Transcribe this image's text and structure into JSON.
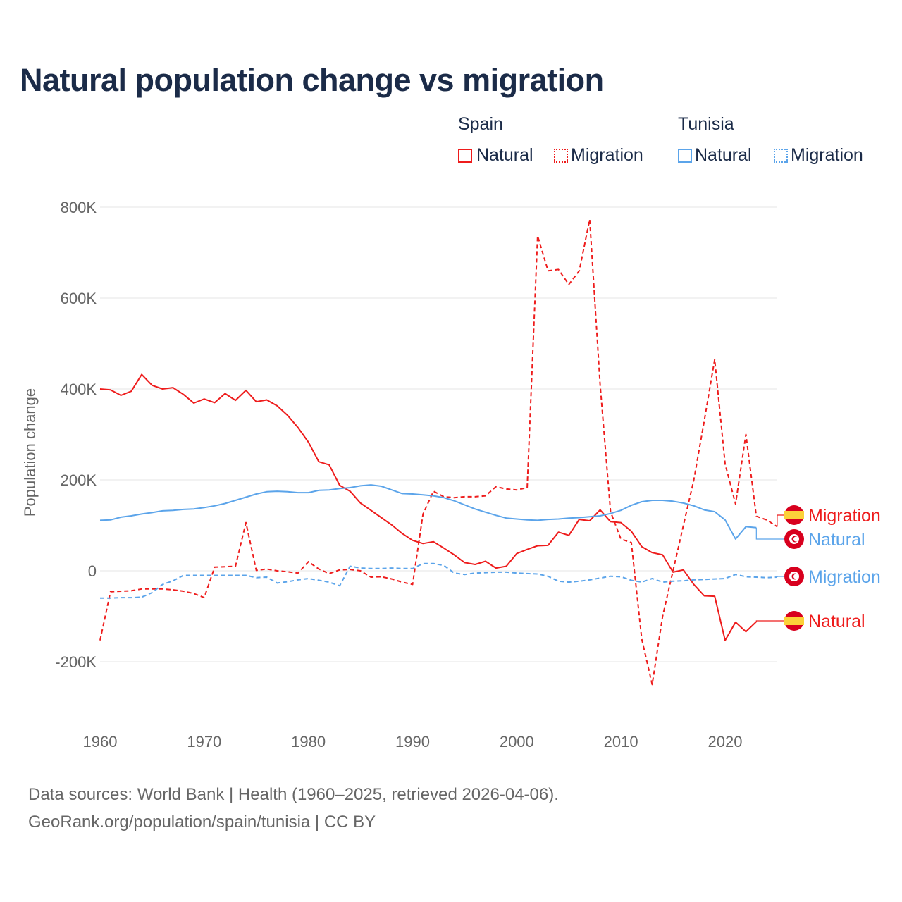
{
  "title": "Natural population change vs migration",
  "legend": {
    "groups": [
      {
        "name": "Spain",
        "items": [
          {
            "label": "Natural",
            "style": "solid"
          },
          {
            "label": "Migration",
            "style": "dotted"
          }
        ],
        "color": "#ee1c1c"
      },
      {
        "name": "Tunisia",
        "items": [
          {
            "label": "Natural",
            "style": "solid"
          },
          {
            "label": "Migration",
            "style": "dotted"
          }
        ],
        "color": "#5ba4ea"
      }
    ]
  },
  "footer": {
    "line1": "Data sources: World Bank | Health (1960–2025, retrieved 2026-04-06).",
    "line2": "GeoRank.org/population/spain/tunisia | CC BY"
  },
  "chart_data": {
    "type": "line",
    "title": "Natural population change vs migration",
    "xlabel": "",
    "ylabel": "Population change",
    "xlim": [
      1960,
      2025
    ],
    "ylim": [
      -300000,
      800000
    ],
    "x_ticks": [
      1960,
      1970,
      1980,
      1990,
      2000,
      2010,
      2020
    ],
    "x_tick_labels": [
      "1960",
      "1970",
      "1980",
      "1990",
      "2000",
      "2010",
      "2020"
    ],
    "y_ticks": [
      -200000,
      0,
      200000,
      400000,
      600000,
      800000
    ],
    "y_tick_labels": [
      "-200K",
      "0",
      "200K",
      "400K",
      "600K",
      "800K"
    ],
    "grid": true,
    "legend_position": "top-right",
    "series": [
      {
        "name": "Spain Natural",
        "country": "Spain",
        "label": "Natural",
        "color": "#ee1c1c",
        "dash": false,
        "x_start": 1960,
        "values": [
          400,
          398,
          386,
          395,
          432,
          408,
          400,
          403,
          388,
          369,
          378,
          370,
          390,
          375,
          397,
          372,
          376,
          363,
          342,
          315,
          283,
          240,
          233,
          188,
          175,
          149,
          133,
          117,
          101,
          82,
          67,
          60,
          64,
          50,
          35,
          18,
          14,
          21,
          6,
          10,
          38,
          47,
          55,
          56,
          85,
          78,
          113,
          110,
          134,
          108,
          106,
          87,
          53,
          40,
          35,
          -3,
          2,
          -30,
          -55,
          -56,
          -153,
          -113,
          -134,
          -112
        ]
      },
      {
        "name": "Spain Migration",
        "country": "Spain",
        "label": "Migration",
        "color": "#ee1c1c",
        "dash": true,
        "x_start": 1960,
        "values": [
          -153,
          -46,
          -45,
          -44,
          -40,
          -40,
          -40,
          -42,
          -45,
          -50,
          -59,
          8,
          9,
          10,
          106,
          1,
          4,
          0,
          -2,
          -5,
          20,
          4,
          -6,
          2,
          3,
          0,
          -14,
          -13,
          -18,
          -25,
          -30,
          125,
          175,
          163,
          161,
          163,
          163,
          165,
          185,
          180,
          178,
          183,
          737,
          660,
          663,
          630,
          660,
          773,
          410,
          130,
          70,
          62,
          -150,
          -250,
          -100,
          0,
          100,
          200,
          330,
          465,
          235,
          147,
          300,
          120,
          112,
          97
        ]
      },
      {
        "name": "Tunisia Natural",
        "country": "Tunisia",
        "label": "Natural",
        "color": "#5ba4ea",
        "dash": false,
        "x_start": 1960,
        "values": [
          111,
          112,
          118,
          121,
          125,
          128,
          132,
          133,
          135,
          136,
          139,
          143,
          148,
          155,
          162,
          169,
          174,
          175,
          174,
          172,
          172,
          177,
          178,
          181,
          183,
          187,
          189,
          186,
          178,
          170,
          169,
          167,
          165,
          161,
          154,
          145,
          136,
          129,
          122,
          116,
          114,
          112,
          111,
          113,
          114,
          116,
          117,
          119,
          121,
          126,
          133,
          144,
          152,
          155,
          155,
          153,
          149,
          143,
          134,
          130,
          112,
          70,
          97,
          95
        ]
      },
      {
        "name": "Tunisia Migration",
        "country": "Tunisia",
        "label": "Migration",
        "color": "#5ba4ea",
        "dash": true,
        "x_start": 1960,
        "values": [
          -60,
          -60,
          -59,
          -59,
          -58,
          -48,
          -30,
          -22,
          -10,
          -10,
          -10,
          -10,
          -10,
          -10,
          -10,
          -15,
          -14,
          -27,
          -24,
          -20,
          -17,
          -21,
          -25,
          -33,
          10,
          6,
          5,
          5,
          6,
          5,
          5,
          16,
          16,
          12,
          -5,
          -8,
          -5,
          -4,
          -3,
          -3,
          -5,
          -6,
          -7,
          -12,
          -23,
          -25,
          -23,
          -20,
          -16,
          -12,
          -13,
          -21,
          -25,
          -17,
          -25,
          -23,
          -22,
          -20,
          -19,
          -18,
          -17,
          -8,
          -13,
          -14,
          -15,
          -14
        ]
      }
    ],
    "value_unit": "thousands",
    "end_labels": [
      {
        "series": "Spain Migration",
        "flag": "spain-flag",
        "text": "Migration"
      },
      {
        "series": "Tunisia Natural",
        "flag": "tunisia-flag",
        "text": "Natural"
      },
      {
        "series": "Tunisia Migration",
        "flag": "tunisia-flag",
        "text": "Migration"
      },
      {
        "series": "Spain Natural",
        "flag": "spain-flag",
        "text": "Natural"
      }
    ]
  }
}
